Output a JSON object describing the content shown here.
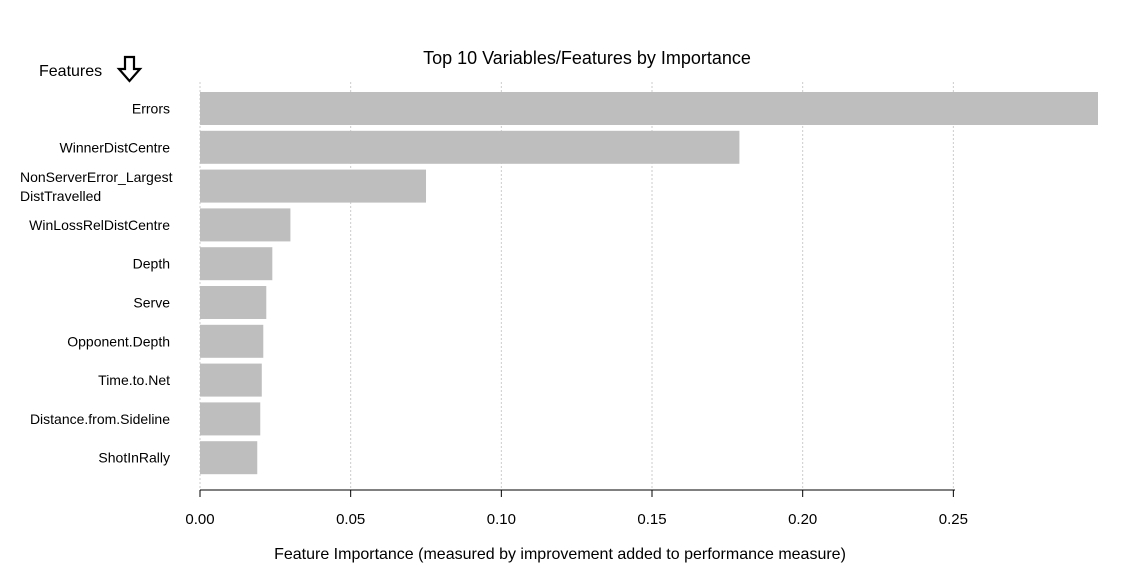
{
  "chart_data": {
    "type": "bar",
    "orientation": "horizontal",
    "title": "Top 10 Variables/Features by Importance",
    "ylabel": "Features",
    "xlabel": "Feature Importance (measured by improvement added to performance measure)",
    "categories": [
      "Errors",
      "WinnerDistCentre",
      "NonServerError_Largest DistTravelled",
      "WinLossRelDistCentre",
      "Depth",
      "Serve",
      "Opponent.Depth",
      "Time.to.Net",
      "Distance.from.Sideline",
      "ShotInRally"
    ],
    "category_lines": [
      [
        "Errors"
      ],
      [
        "WinnerDistCentre"
      ],
      [
        "NonServerError_Largest",
        "DistTravelled"
      ],
      [
        "WinLossRelDistCentre"
      ],
      [
        "Depth"
      ],
      [
        "Serve"
      ],
      [
        "Opponent.Depth"
      ],
      [
        "Time.to.Net"
      ],
      [
        "Distance.from.Sideline"
      ],
      [
        "ShotInRally"
      ]
    ],
    "values": [
      0.298,
      0.179,
      0.075,
      0.03,
      0.024,
      0.022,
      0.021,
      0.0205,
      0.02,
      0.019
    ],
    "xlim": [
      0,
      0.298
    ],
    "xticks": [
      0,
      0.05,
      0.1,
      0.15,
      0.2,
      0.25
    ],
    "xtick_labels": [
      "0.00",
      "0.05",
      "0.10",
      "0.15",
      "0.20",
      "0.25"
    ],
    "grid": "vertical dotted",
    "legend": "none",
    "bar_color": "#bebebe",
    "grid_color": "#cccccc",
    "heading_icon": "down-arrow-icon"
  }
}
